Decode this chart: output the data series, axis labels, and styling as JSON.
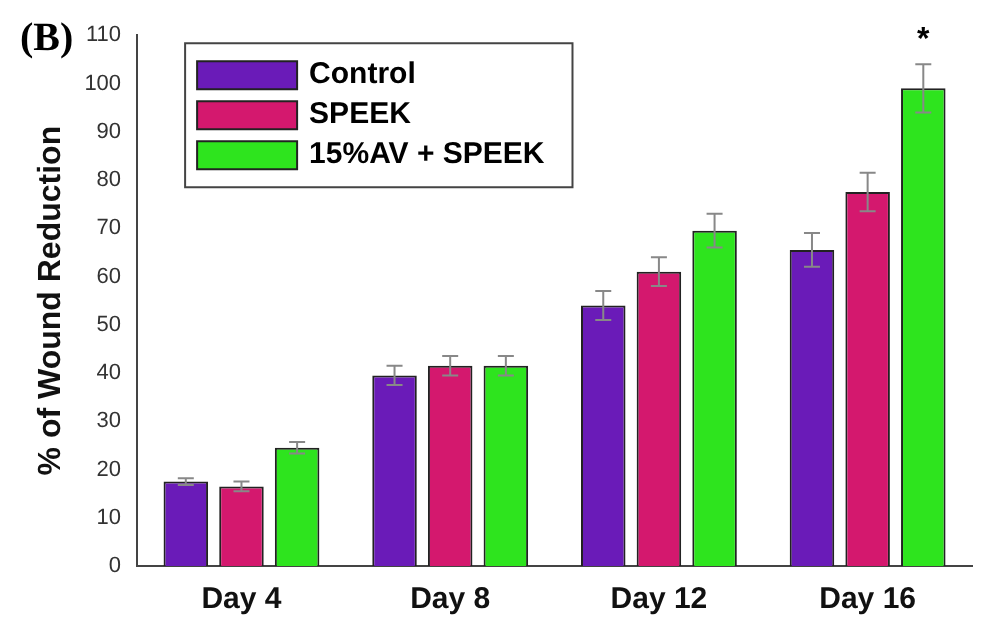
{
  "chart_data": {
    "type": "bar",
    "ylabel": "% of Wound Reduction",
    "categories": [
      "Day 4",
      "Day 8",
      "Day 12",
      "Day 16"
    ],
    "series": [
      {
        "name": "Control",
        "color": "#6a1bb8",
        "values": [
          17.5,
          39.5,
          54,
          65.5
        ],
        "errors": [
          0.7,
          2,
          3,
          3.5
        ]
      },
      {
        "name": "SPEEK",
        "color": "#d4186e",
        "values": [
          16.5,
          41.5,
          61,
          77.5
        ],
        "errors": [
          1,
          2,
          3,
          4
        ]
      },
      {
        "name": "15%AV + SPEEK",
        "color": "#2ee41e",
        "values": [
          24.5,
          41.5,
          69.5,
          99
        ],
        "errors": [
          1.2,
          2,
          3.5,
          5
        ]
      }
    ],
    "ylim": [
      0,
      110
    ],
    "yticks": [
      0,
      10,
      20,
      30,
      40,
      50,
      60,
      70,
      80,
      90,
      100,
      110
    ],
    "grid": false,
    "legend": "top left",
    "annotations": [
      "(B)",
      "*"
    ]
  }
}
